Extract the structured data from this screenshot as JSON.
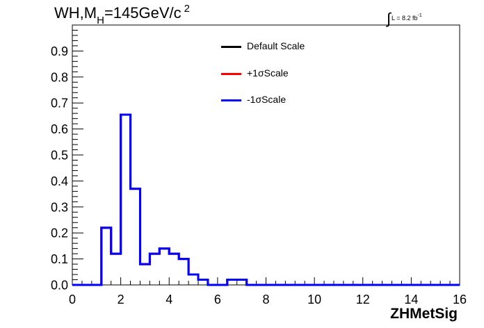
{
  "title": {
    "main": "WH,M",
    "sub": "H",
    "eq": "=145GeV/c",
    "sup": "2"
  },
  "luminosity": {
    "integral": "∫",
    "text": "L = 8.2 fb",
    "sup": "-1"
  },
  "legend": [
    {
      "label": "Default Scale",
      "color": "#000000"
    },
    {
      "label": "+1σScale",
      "color": "#ff0000"
    },
    {
      "label": "-1σScale",
      "color": "#0000ff"
    }
  ],
  "chart_data": {
    "type": "line",
    "style": "step-histogram",
    "xlabel": "ZHMetSig",
    "ylabel": "",
    "xlim": [
      0,
      16
    ],
    "ylim": [
      0,
      1.0
    ],
    "xticks": [
      "0",
      "2",
      "4",
      "6",
      "8",
      "10",
      "12",
      "14",
      "16"
    ],
    "yticks": [
      "0.0",
      "0.1",
      "0.2",
      "0.3",
      "0.4",
      "0.5",
      "0.6",
      "0.7",
      "0.8",
      "0.9"
    ],
    "bin_width": 0.4,
    "bin_edges_start": 0,
    "series": [
      {
        "name": "Default Scale",
        "color": "#000000",
        "values": [
          0,
          0,
          0,
          0.22,
          0.12,
          0.655,
          0.37,
          0.08,
          0.12,
          0.14,
          0.12,
          0.1,
          0.04,
          0.02,
          0,
          0,
          0.02,
          0.02,
          0,
          0,
          0,
          0,
          0,
          0,
          0,
          0,
          0,
          0,
          0,
          0,
          0,
          0,
          0,
          0,
          0,
          0,
          0,
          0,
          0,
          0
        ]
      },
      {
        "name": "+1σScale",
        "color": "#ff0000",
        "values": [
          0,
          0,
          0,
          0.22,
          0.12,
          0.655,
          0.37,
          0.08,
          0.12,
          0.14,
          0.12,
          0.1,
          0.04,
          0.02,
          0,
          0,
          0.02,
          0.02,
          0,
          0,
          0,
          0,
          0,
          0,
          0,
          0,
          0,
          0,
          0,
          0,
          0,
          0,
          0,
          0,
          0,
          0,
          0,
          0,
          0,
          0
        ]
      },
      {
        "name": "-1σScale",
        "color": "#0000ff",
        "values": [
          0,
          0,
          0,
          0.22,
          0.12,
          0.655,
          0.37,
          0.08,
          0.12,
          0.14,
          0.12,
          0.1,
          0.04,
          0.02,
          0,
          0,
          0.02,
          0.02,
          0,
          0,
          0,
          0,
          0,
          0,
          0,
          0,
          0,
          0,
          0,
          0,
          0,
          0,
          0,
          0,
          0,
          0,
          0,
          0,
          0,
          0
        ]
      }
    ]
  }
}
